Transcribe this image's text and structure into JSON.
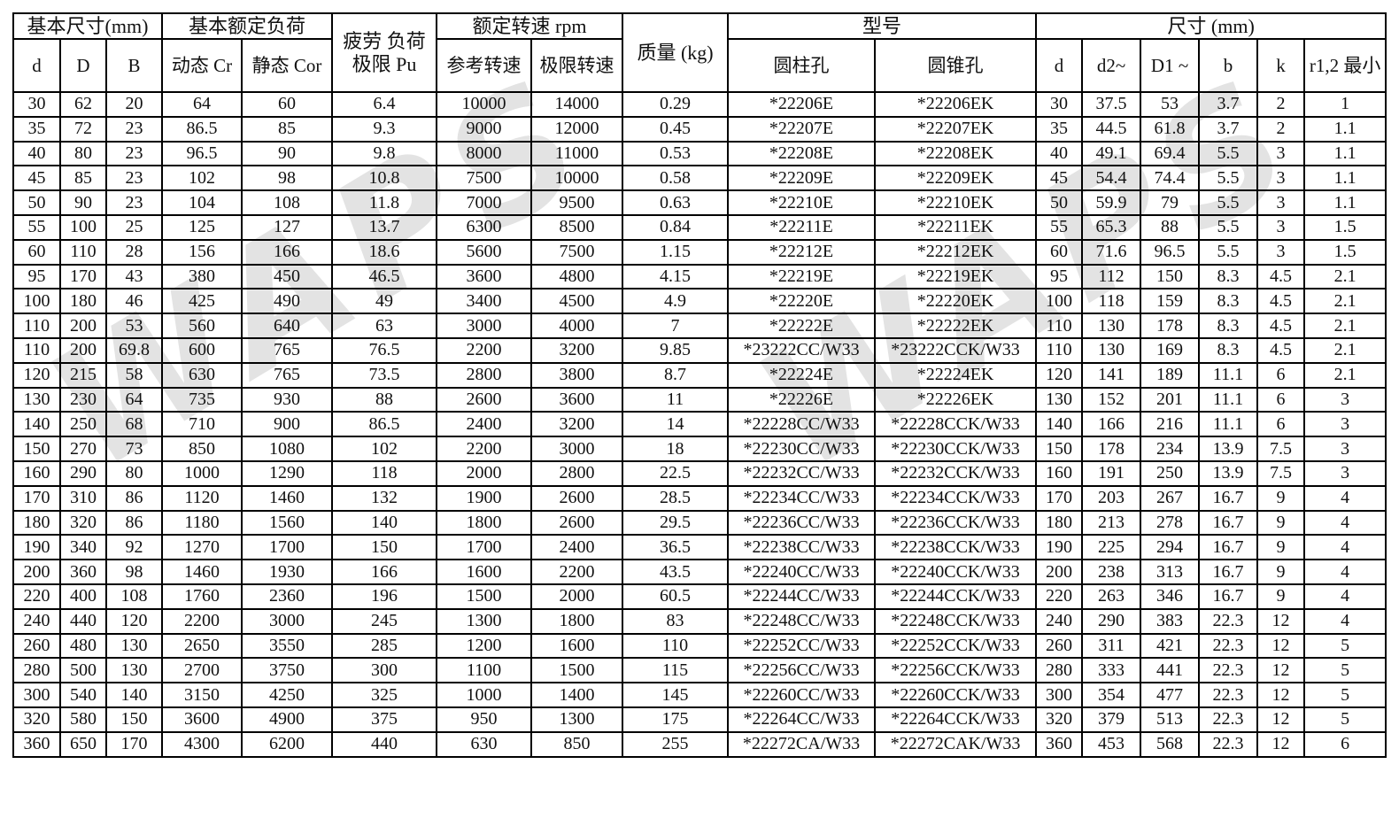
{
  "watermark": {
    "text": "WAPS"
  },
  "header": {
    "basic_dims": "基本尺寸(mm)",
    "basic_load": "基本额定负荷",
    "fatigue_line1": "疲劳 负荷",
    "fatigue_line2": "极限 Pu",
    "rated_speed": "额定转速 rpm",
    "mass": "质量 (kg)",
    "model": "型号",
    "dims": "尺寸 (mm)",
    "sub": [
      "d",
      "D",
      "B",
      "动态 Cr",
      "静态 Cor",
      "参考转速",
      "极限转速",
      "圆柱孔",
      "圆锥孔",
      "d",
      "d2~",
      "D1 ~",
      "b",
      "k",
      "r1,2 最小"
    ]
  },
  "rows": [
    [
      "30",
      "62",
      "20",
      "64",
      "60",
      "6.4",
      "10000",
      "14000",
      "0.29",
      "*22206E",
      "*22206EK",
      "30",
      "37.5",
      "53",
      "3.7",
      "2",
      "1"
    ],
    [
      "35",
      "72",
      "23",
      "86.5",
      "85",
      "9.3",
      "9000",
      "12000",
      "0.45",
      "*22207E",
      "*22207EK",
      "35",
      "44.5",
      "61.8",
      "3.7",
      "2",
      "1.1"
    ],
    [
      "40",
      "80",
      "23",
      "96.5",
      "90",
      "9.8",
      "8000",
      "11000",
      "0.53",
      "*22208E",
      "*22208EK",
      "40",
      "49.1",
      "69.4",
      "5.5",
      "3",
      "1.1"
    ],
    [
      "45",
      "85",
      "23",
      "102",
      "98",
      "10.8",
      "7500",
      "10000",
      "0.58",
      "*22209E",
      "*22209EK",
      "45",
      "54.4",
      "74.4",
      "5.5",
      "3",
      "1.1"
    ],
    [
      "50",
      "90",
      "23",
      "104",
      "108",
      "11.8",
      "7000",
      "9500",
      "0.63",
      "*22210E",
      "*22210EK",
      "50",
      "59.9",
      "79",
      "5.5",
      "3",
      "1.1"
    ],
    [
      "55",
      "100",
      "25",
      "125",
      "127",
      "13.7",
      "6300",
      "8500",
      "0.84",
      "*22211E",
      "*22211EK",
      "55",
      "65.3",
      "88",
      "5.5",
      "3",
      "1.5"
    ],
    [
      "60",
      "110",
      "28",
      "156",
      "166",
      "18.6",
      "5600",
      "7500",
      "1.15",
      "*22212E",
      "*22212EK",
      "60",
      "71.6",
      "96.5",
      "5.5",
      "3",
      "1.5"
    ],
    [
      "95",
      "170",
      "43",
      "380",
      "450",
      "46.5",
      "3600",
      "4800",
      "4.15",
      "*22219E",
      "*22219EK",
      "95",
      "112",
      "150",
      "8.3",
      "4.5",
      "2.1"
    ],
    [
      "100",
      "180",
      "46",
      "425",
      "490",
      "49",
      "3400",
      "4500",
      "4.9",
      "*22220E",
      "*22220EK",
      "100",
      "118",
      "159",
      "8.3",
      "4.5",
      "2.1"
    ],
    [
      "110",
      "200",
      "53",
      "560",
      "640",
      "63",
      "3000",
      "4000",
      "7",
      "*22222E",
      "*22222EK",
      "110",
      "130",
      "178",
      "8.3",
      "4.5",
      "2.1"
    ],
    [
      "110",
      "200",
      "69.8",
      "600",
      "765",
      "76.5",
      "2200",
      "3200",
      "9.85",
      "*23222CC/W33",
      "*23222CCK/W33",
      "110",
      "130",
      "169",
      "8.3",
      "4.5",
      "2.1"
    ],
    [
      "120",
      "215",
      "58",
      "630",
      "765",
      "73.5",
      "2800",
      "3800",
      "8.7",
      "*22224E",
      "*22224EK",
      "120",
      "141",
      "189",
      "11.1",
      "6",
      "2.1"
    ],
    [
      "130",
      "230",
      "64",
      "735",
      "930",
      "88",
      "2600",
      "3600",
      "11",
      "*22226E",
      "*22226EK",
      "130",
      "152",
      "201",
      "11.1",
      "6",
      "3"
    ],
    [
      "140",
      "250",
      "68",
      "710",
      "900",
      "86.5",
      "2400",
      "3200",
      "14",
      "*22228CC/W33",
      "*22228CCK/W33",
      "140",
      "166",
      "216",
      "11.1",
      "6",
      "3"
    ],
    [
      "150",
      "270",
      "73",
      "850",
      "1080",
      "102",
      "2200",
      "3000",
      "18",
      "*22230CC/W33",
      "*22230CCK/W33",
      "150",
      "178",
      "234",
      "13.9",
      "7.5",
      "3"
    ],
    [
      "160",
      "290",
      "80",
      "1000",
      "1290",
      "118",
      "2000",
      "2800",
      "22.5",
      "*22232CC/W33",
      "*22232CCK/W33",
      "160",
      "191",
      "250",
      "13.9",
      "7.5",
      "3"
    ],
    [
      "170",
      "310",
      "86",
      "1120",
      "1460",
      "132",
      "1900",
      "2600",
      "28.5",
      "*22234CC/W33",
      "*22234CCK/W33",
      "170",
      "203",
      "267",
      "16.7",
      "9",
      "4"
    ],
    [
      "180",
      "320",
      "86",
      "1180",
      "1560",
      "140",
      "1800",
      "2600",
      "29.5",
      "*22236CC/W33",
      "*22236CCK/W33",
      "180",
      "213",
      "278",
      "16.7",
      "9",
      "4"
    ],
    [
      "190",
      "340",
      "92",
      "1270",
      "1700",
      "150",
      "1700",
      "2400",
      "36.5",
      "*22238CC/W33",
      "*22238CCK/W33",
      "190",
      "225",
      "294",
      "16.7",
      "9",
      "4"
    ],
    [
      "200",
      "360",
      "98",
      "1460",
      "1930",
      "166",
      "1600",
      "2200",
      "43.5",
      "*22240CC/W33",
      "*22240CCK/W33",
      "200",
      "238",
      "313",
      "16.7",
      "9",
      "4"
    ],
    [
      "220",
      "400",
      "108",
      "1760",
      "2360",
      "196",
      "1500",
      "2000",
      "60.5",
      "*22244CC/W33",
      "*22244CCK/W33",
      "220",
      "263",
      "346",
      "16.7",
      "9",
      "4"
    ],
    [
      "240",
      "440",
      "120",
      "2200",
      "3000",
      "245",
      "1300",
      "1800",
      "83",
      "*22248CC/W33",
      "*22248CCK/W33",
      "240",
      "290",
      "383",
      "22.3",
      "12",
      "4"
    ],
    [
      "260",
      "480",
      "130",
      "2650",
      "3550",
      "285",
      "1200",
      "1600",
      "110",
      "*22252CC/W33",
      "*22252CCK/W33",
      "260",
      "311",
      "421",
      "22.3",
      "12",
      "5"
    ],
    [
      "280",
      "500",
      "130",
      "2700",
      "3750",
      "300",
      "1100",
      "1500",
      "115",
      "*22256CC/W33",
      "*22256CCK/W33",
      "280",
      "333",
      "441",
      "22.3",
      "12",
      "5"
    ],
    [
      "300",
      "540",
      "140",
      "3150",
      "4250",
      "325",
      "1000",
      "1400",
      "145",
      "*22260CC/W33",
      "*22260CCK/W33",
      "300",
      "354",
      "477",
      "22.3",
      "12",
      "5"
    ],
    [
      "320",
      "580",
      "150",
      "3600",
      "4900",
      "375",
      "950",
      "1300",
      "175",
      "*22264CC/W33",
      "*22264CCK/W33",
      "320",
      "379",
      "513",
      "22.3",
      "12",
      "5"
    ],
    [
      "360",
      "650",
      "170",
      "4300",
      "6200",
      "440",
      "630",
      "850",
      "255",
      "*22272CA/W33",
      "*22272CAK/W33",
      "360",
      "453",
      "568",
      "22.3",
      "12",
      "6"
    ]
  ]
}
